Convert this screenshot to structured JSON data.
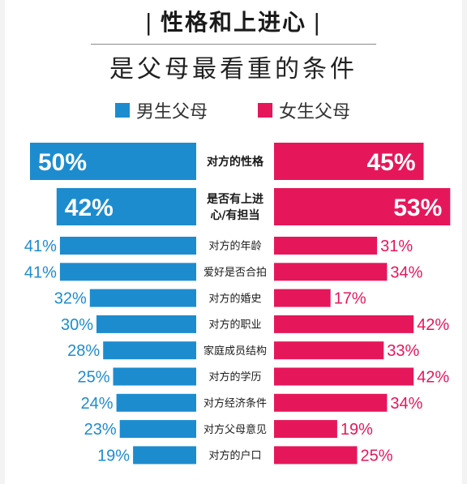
{
  "title": "性格和上进心",
  "title_bar": "|",
  "subtitle": "是父母最看重的条件",
  "legend": {
    "male": "男生父母",
    "female": "女生父母"
  },
  "colors": {
    "male": "#1d8ccf",
    "female": "#e5175a",
    "label_male": "#1d8ccf",
    "label_female": "#e5175a"
  },
  "chart_data": {
    "type": "bar",
    "orientation": "horizontal-diverging",
    "categories": [
      "对方的性格",
      "是否有上进心/有担当",
      "对方的年龄",
      "爱好是否合拍",
      "对方的婚史",
      "对方的职业",
      "家庭成员结构",
      "对方的学历",
      "对方经济条件",
      "对方父母意见",
      "对方的户口"
    ],
    "category_lines": [
      [
        "对方的性格"
      ],
      [
        "是否有上进",
        "心/有担当"
      ],
      [
        "对方的年龄"
      ],
      [
        "爱好是否合拍"
      ],
      [
        "对方的婚史"
      ],
      [
        "对方的职业"
      ],
      [
        "家庭成员结构"
      ],
      [
        "对方的学历"
      ],
      [
        "对方经济条件"
      ],
      [
        "对方父母意见"
      ],
      [
        "对方的户口"
      ]
    ],
    "series": [
      {
        "name": "男生父母",
        "values": [
          50,
          42,
          41,
          41,
          32,
          30,
          28,
          25,
          24,
          23,
          19
        ],
        "labels": [
          "50%",
          "42%",
          "41%",
          "41%",
          "32%",
          "30%",
          "28%",
          "25%",
          "24%",
          "23%",
          "19%"
        ]
      },
      {
        "name": "女生父母",
        "values": [
          45,
          53,
          31,
          34,
          17,
          42,
          33,
          42,
          34,
          19,
          25
        ],
        "labels": [
          "45%",
          "53%",
          "31%",
          "34%",
          "17%",
          "42%",
          "33%",
          "42%",
          "34%",
          "19%",
          "25%"
        ]
      }
    ],
    "highlighted_rows": 2,
    "legend_position": "top"
  }
}
